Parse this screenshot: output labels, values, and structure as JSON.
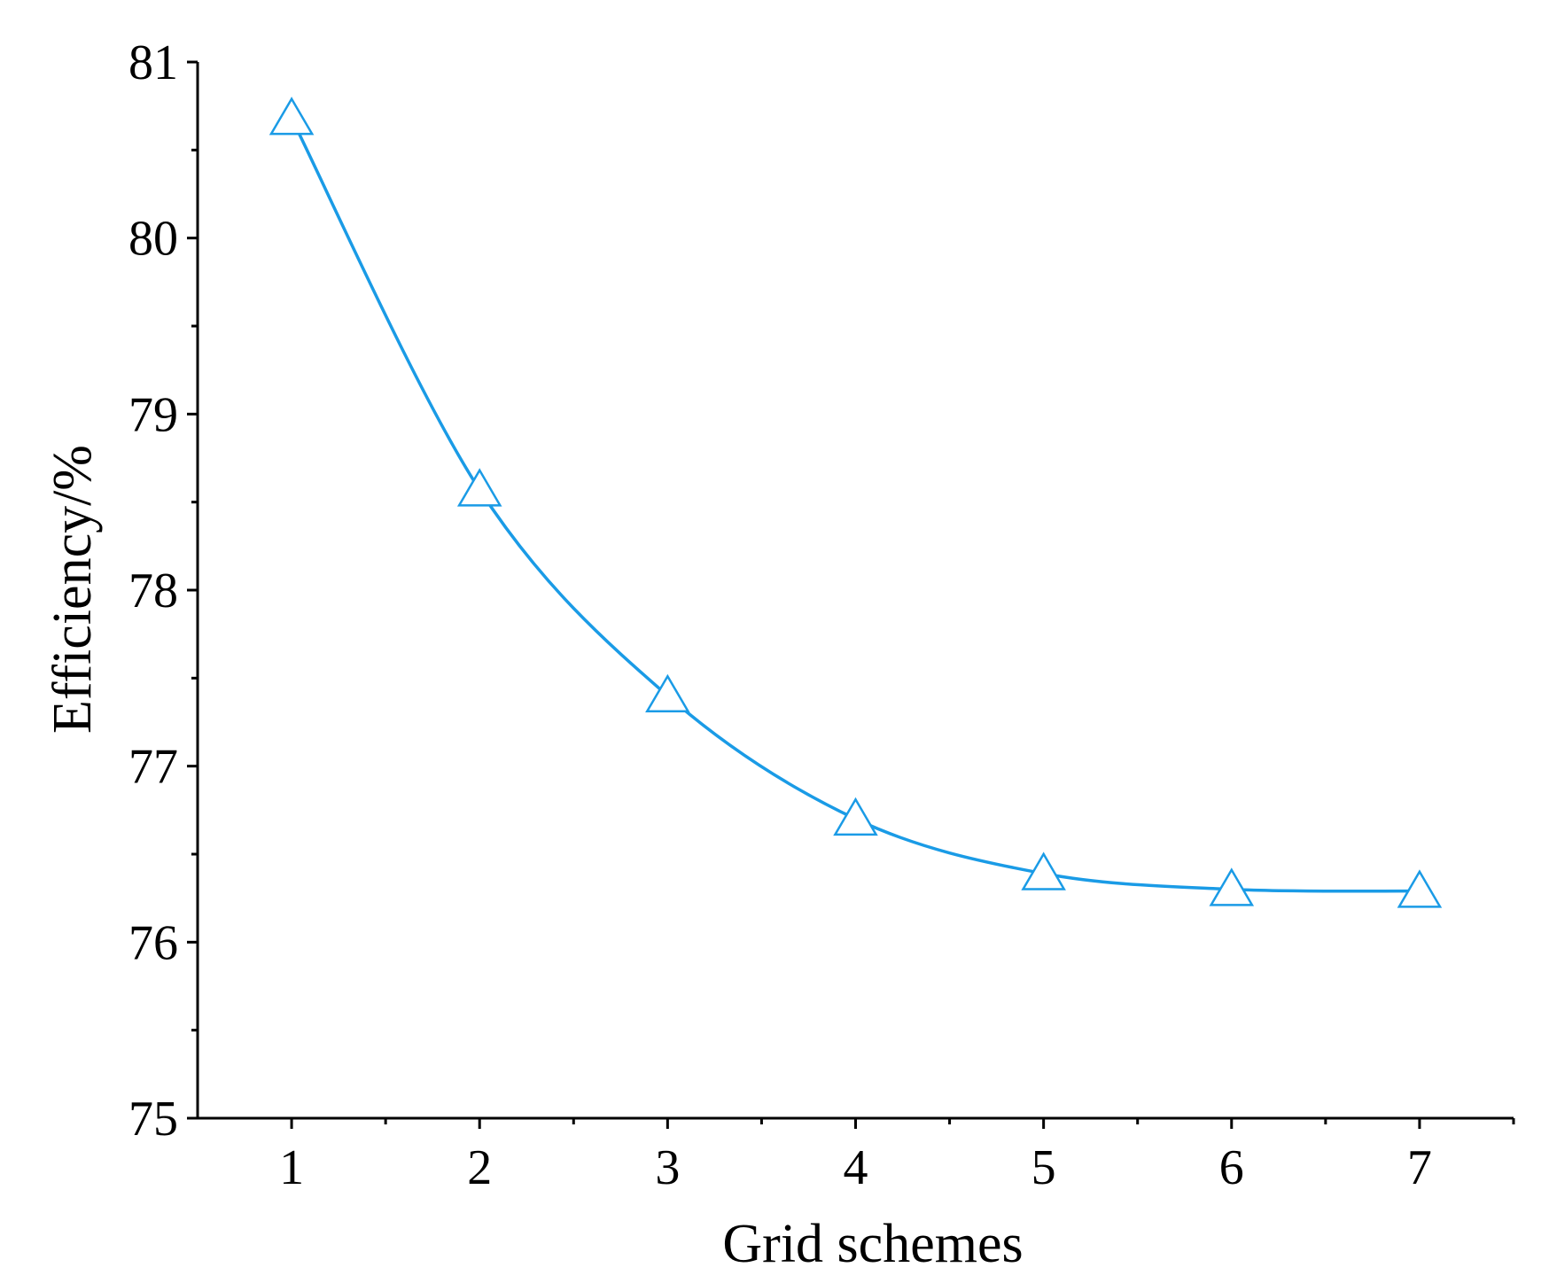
{
  "chart_data": {
    "type": "line",
    "title": "",
    "xlabel": "Grid schemes",
    "ylabel": "Efficiency/%",
    "x": [
      1,
      2,
      3,
      4,
      5,
      6,
      7
    ],
    "x_tick_labels": [
      "1",
      "2",
      "3",
      "4",
      "5",
      "6",
      "7"
    ],
    "xlim": [
      0.5,
      7.5
    ],
    "ylim": [
      75,
      81
    ],
    "y_ticks": [
      75,
      76,
      77,
      78,
      79,
      80,
      81
    ],
    "y_tick_labels": [
      "75",
      "76",
      "77",
      "78",
      "79",
      "80",
      "81"
    ],
    "series": [
      {
        "marker": "open-triangle",
        "color": "#1a9be6",
        "line": "smooth",
        "values": [
          80.68,
          78.57,
          77.4,
          76.7,
          76.39,
          76.3,
          76.29
        ]
      }
    ],
    "grid": false,
    "legend": "none"
  }
}
